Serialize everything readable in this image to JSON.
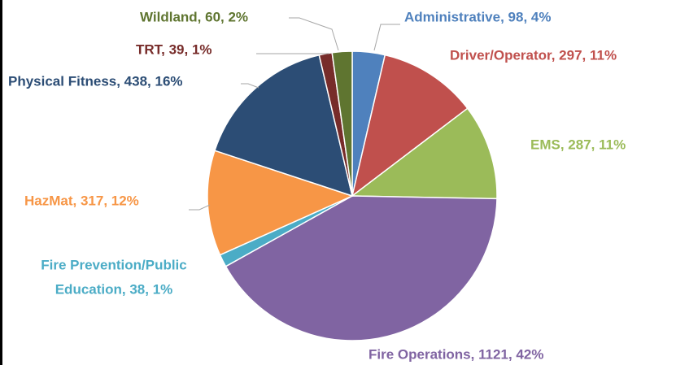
{
  "chart_data": {
    "type": "pie",
    "labels": [
      [
        "Administrative, 98, 4%"
      ],
      [
        "Driver/Operator, 297, 11%"
      ],
      [
        "EMS, 287, 11%"
      ],
      [
        "Fire Operations, 1121, 42%"
      ],
      [
        "Fire Prevention/Public",
        "Education, 38, 1%"
      ],
      [
        "HazMat, 317, 12%"
      ],
      [
        "Physical Fitness, 438, 16%"
      ],
      [
        "TRT, 39, 1%"
      ],
      [
        "Wildland, 60, 2%"
      ]
    ],
    "values": [
      98,
      297,
      287,
      1121,
      38,
      317,
      438,
      39,
      60
    ],
    "colors": [
      "#4f81bd",
      "#c0504d",
      "#9bbb59",
      "#8064a2",
      "#4bacc6",
      "#f79646",
      "#2c4d75",
      "#772c2a",
      "#5f7530"
    ]
  }
}
